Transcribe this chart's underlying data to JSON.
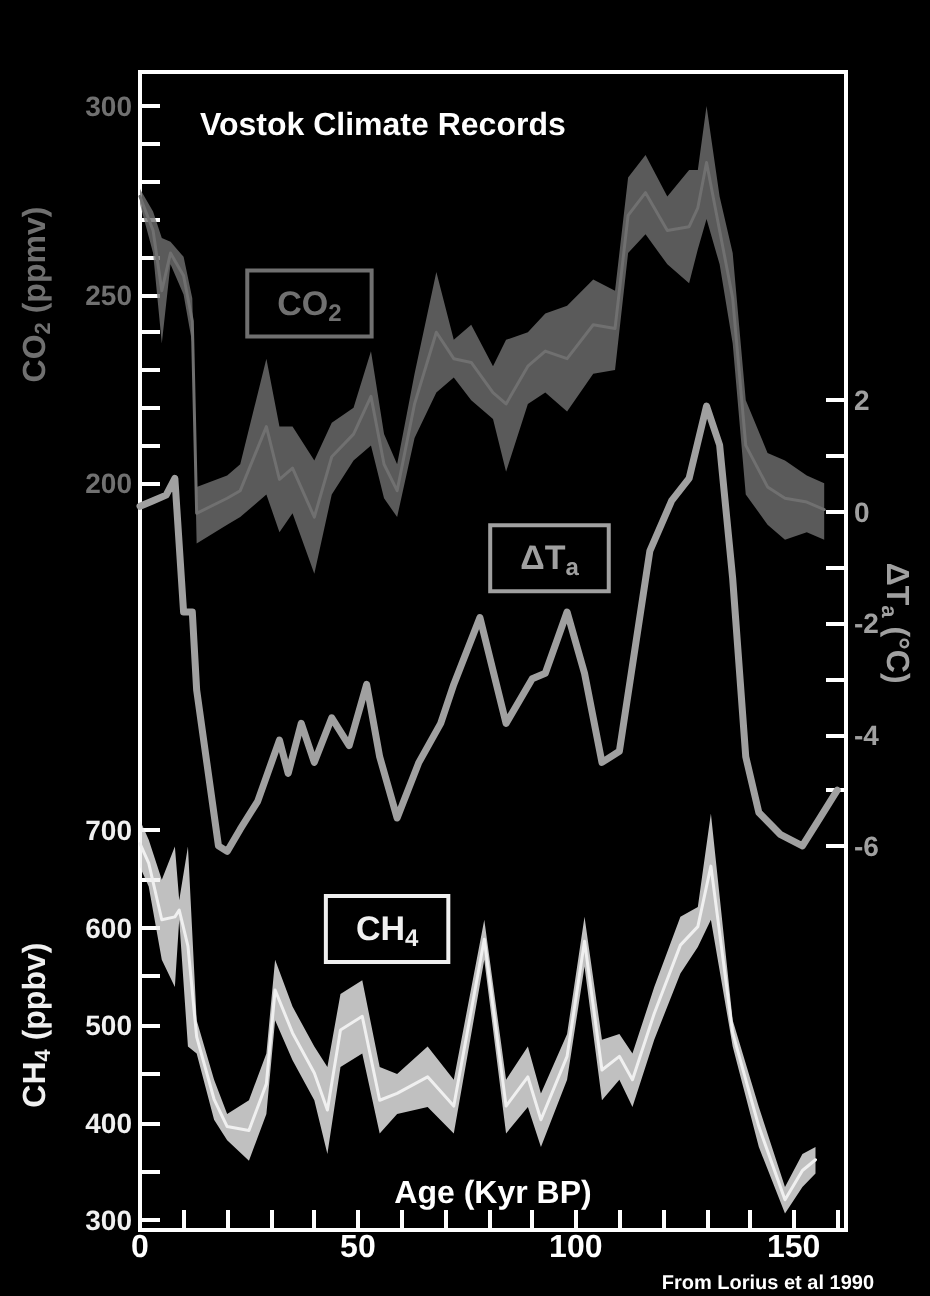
{
  "chart_data": {
    "type": "line",
    "title": "Vostok Climate Records",
    "xlabel": "Age (Kyr BP)",
    "ylabel": "CO$_{2}$ (ppmv)",
    "y2label": "ΔT$_{a}$ (°C)",
    "y3label": "CH$_{4}$ (ppbv)",
    "annotations": [
      "From Lorius et al 1990"
    ],
    "xlim": [
      0,
      162
    ],
    "xticks": [
      0,
      {
        "value": 10,
        "label": null
      },
      {
        "value": 20,
        "label": null
      },
      {
        "value": 30,
        "label": null
      },
      {
        "value": 40,
        "label": null
      },
      50,
      {
        "value": 60,
        "label": null
      },
      {
        "value": 70,
        "label": null
      },
      {
        "value": 80,
        "label": null
      },
      {
        "value": 90,
        "label": null
      },
      100,
      {
        "value": 110,
        "label": null
      },
      {
        "value": 120,
        "label": null
      },
      {
        "value": 130,
        "label": null
      },
      {
        "value": 140,
        "label": null
      },
      150,
      {
        "value": 160,
        "label": null
      }
    ],
    "ylim": [
      2,
      309
    ],
    "yticks": [
      200,
      {
        "value": 210,
        "label": null
      },
      {
        "value": 220,
        "label": null
      },
      {
        "value": 230,
        "label": null
      },
      {
        "value": 240,
        "label": null
      },
      250,
      {
        "value": 260,
        "label": null
      },
      {
        "value": 270,
        "label": null
      },
      {
        "value": 280,
        "label": null
      },
      {
        "value": 290,
        "label": null
      },
      300
    ],
    "y2lim": [
      -12.9,
      7.9
    ],
    "y2ticks": [
      -6,
      {
        "value": -5,
        "label": null
      },
      -4,
      {
        "value": -3,
        "label": null
      },
      -2,
      {
        "value": -1,
        "label": null
      },
      0,
      {
        "value": 1,
        "label": null
      },
      2
    ],
    "y3lim": [
      290,
      1477
    ],
    "y3ticks": [
      300,
      {
        "value": 350,
        "label": null
      },
      400,
      {
        "value": 450,
        "label": null
      },
      500,
      {
        "value": 550,
        "label": null
      },
      600,
      {
        "value": 650,
        "label": null
      },
      700
    ],
    "grid": false,
    "legend": false,
    "marker": "none",
    "series": [
      {
        "name": "CO$_{2}$",
        "color": "#707070",
        "x": [
          0,
          3,
          5,
          7,
          10,
          12,
          13,
          20,
          23,
          29,
          32,
          35,
          40,
          44,
          49,
          53,
          56,
          59,
          63,
          68,
          72,
          76,
          81,
          84,
          89,
          93,
          98,
          104,
          109,
          112,
          116,
          121,
          126,
          128,
          130,
          133,
          136,
          139,
          144,
          148,
          153,
          157
        ],
        "values": [
          276,
          267,
          251,
          261,
          255,
          243,
          192,
          196,
          198,
          215,
          201,
          204,
          191,
          207,
          213,
          223,
          205,
          198,
          221,
          240,
          233,
          232,
          224,
          221,
          231,
          235,
          233,
          242,
          241,
          271,
          277,
          267,
          268,
          273,
          285,
          267,
          249,
          210,
          199,
          196,
          195,
          193
        ],
        "lower": [
          274,
          261,
          237,
          258,
          250,
          237,
          184,
          189,
          191,
          197,
          187,
          192,
          176,
          197,
          206,
          210,
          196,
          191,
          212,
          224,
          228,
          222,
          217,
          203,
          221,
          224,
          219,
          229,
          230,
          261,
          266,
          258,
          253,
          262,
          270,
          258,
          237,
          197,
          189,
          185,
          187,
          185
        ],
        "upper": [
          278,
          272,
          265,
          264,
          260,
          249,
          199,
          202,
          205,
          233,
          215,
          215,
          206,
          216,
          220,
          235,
          213,
          205,
          229,
          256,
          238,
          242,
          231,
          238,
          240,
          245,
          247,
          254,
          251,
          281,
          287,
          276,
          283,
          283,
          300,
          276,
          261,
          222,
          208,
          206,
          202,
          200
        ]
      },
      {
        "name": "ΔT$_{a}$",
        "color": "#a0a0a0",
        "axis": "y2",
        "x": [
          0,
          3,
          6,
          8,
          10,
          12,
          13,
          18,
          20,
          23,
          27,
          32,
          34,
          37,
          40,
          44,
          48,
          52,
          55,
          59,
          64,
          69,
          72,
          78,
          84,
          90,
          93,
          98,
          102,
          106,
          110,
          117,
          122,
          126,
          130,
          133,
          136,
          139,
          142,
          147,
          152,
          156,
          160
        ],
        "values": [
          0.1,
          0.2,
          0.3,
          0.6,
          -1.8,
          -1.8,
          -3.2,
          -6.0,
          -6.1,
          -5.7,
          -5.2,
          -4.1,
          -4.7,
          -3.8,
          -4.5,
          -3.7,
          -4.2,
          -3.1,
          -4.4,
          -5.5,
          -4.5,
          -3.8,
          -3.1,
          -1.9,
          -3.8,
          -3.0,
          -2.9,
          -1.8,
          -2.9,
          -4.5,
          -4.3,
          -0.7,
          0.2,
          0.6,
          1.9,
          1.2,
          -1.2,
          -4.4,
          -5.4,
          -5.8,
          -6.0,
          -5.5,
          -5.0
        ]
      },
      {
        "name": "CH$_{4}$",
        "color": "#f0f0f0",
        "axis": "y3",
        "x": [
          0,
          2,
          5,
          8,
          9,
          11,
          13,
          17,
          20,
          25,
          29,
          31,
          35,
          40,
          43,
          46,
          51,
          55,
          59,
          66,
          72,
          79,
          84,
          89,
          92,
          98,
          102,
          106,
          110,
          113,
          118,
          124,
          128,
          131,
          136,
          142,
          148,
          152,
          155
        ],
        "values": [
          686,
          666,
          608,
          611,
          618,
          581,
          488,
          424,
          396,
          392,
          440,
          536,
          492,
          451,
          413,
          495,
          509,
          423,
          430,
          447,
          417,
          588,
          417,
          447,
          403,
          468,
          586,
          454,
          468,
          444,
          512,
          582,
          601,
          663,
          492,
          396,
          321,
          351,
          362
        ],
        "lower": [
          662,
          642,
          567,
          539,
          608,
          478,
          471,
          403,
          382,
          361,
          409,
          505,
          464,
          423,
          368,
          457,
          471,
          389,
          409,
          416,
          389,
          567,
          389,
          416,
          375,
          444,
          560,
          423,
          444,
          416,
          485,
          553,
          580,
          608,
          478,
          375,
          307,
          334,
          348
        ],
        "upper": [
          710,
          690,
          649,
          683,
          628,
          683,
          505,
          444,
          409,
          423,
          471,
          567,
          519,
          478,
          457,
          532,
          546,
          457,
          450,
          478,
          444,
          608,
          444,
          478,
          430,
          491,
          611,
          485,
          491,
          471,
          539,
          611,
          621,
          717,
          505,
          416,
          334,
          368,
          375
        ]
      }
    ]
  }
}
